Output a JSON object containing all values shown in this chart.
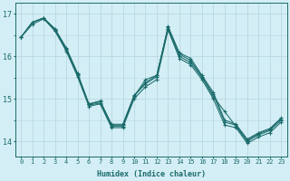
{
  "xlabel": "Humidex (Indice chaleur)",
  "bg_color": "#d4eef5",
  "grid_color": "#b8d8e0",
  "line_color": "#1a6b6b",
  "xlim": [
    -0.5,
    23.5
  ],
  "ylim": [
    13.65,
    17.25
  ],
  "yticks": [
    14,
    15,
    16,
    17
  ],
  "xticks": [
    0,
    1,
    2,
    3,
    4,
    5,
    6,
    7,
    8,
    9,
    10,
    11,
    12,
    13,
    14,
    15,
    16,
    17,
    18,
    19,
    20,
    21,
    22,
    23
  ],
  "lines": [
    {
      "x": [
        0,
        1,
        2,
        3,
        4,
        5,
        6,
        7,
        8,
        9,
        10,
        11,
        12,
        13,
        14,
        15,
        16,
        17,
        18,
        19,
        20,
        21,
        22,
        23
      ],
      "y": [
        16.45,
        16.8,
        16.9,
        16.6,
        16.15,
        15.55,
        14.85,
        14.9,
        14.35,
        14.35,
        15.05,
        15.45,
        15.55,
        16.65,
        16.0,
        15.85,
        15.5,
        15.05,
        14.7,
        14.35,
        14.0,
        14.15,
        14.25,
        14.5
      ]
    },
    {
      "x": [
        0,
        1,
        2,
        3,
        4,
        5,
        6,
        7,
        8,
        9,
        10,
        11,
        12,
        13,
        14,
        15,
        16,
        17,
        18,
        19,
        20,
        21,
        22,
        23
      ],
      "y": [
        16.45,
        16.8,
        16.9,
        16.62,
        16.18,
        15.58,
        14.87,
        14.93,
        14.38,
        14.38,
        15.07,
        15.35,
        15.52,
        16.68,
        16.05,
        15.9,
        15.52,
        15.1,
        14.45,
        14.38,
        14.02,
        14.18,
        14.28,
        14.52
      ]
    },
    {
      "x": [
        0,
        1,
        2,
        3,
        4,
        5,
        6,
        7,
        8,
        9,
        10,
        11,
        12,
        13,
        14,
        15,
        16,
        17,
        18,
        19,
        20,
        21,
        22,
        23
      ],
      "y": [
        16.45,
        16.8,
        16.9,
        16.65,
        16.2,
        15.6,
        14.88,
        14.95,
        14.4,
        14.4,
        15.08,
        15.38,
        15.55,
        16.7,
        16.08,
        15.95,
        15.55,
        15.15,
        14.5,
        14.4,
        14.05,
        14.2,
        14.3,
        14.55
      ]
    },
    {
      "x": [
        0,
        1,
        2,
        3,
        4,
        5,
        6,
        7,
        8,
        9,
        10,
        11,
        12,
        13,
        14,
        15,
        16,
        17,
        18,
        19,
        20,
        21,
        22,
        23
      ],
      "y": [
        16.45,
        16.75,
        16.88,
        16.6,
        16.12,
        15.52,
        14.82,
        14.88,
        14.32,
        14.32,
        15.0,
        15.28,
        15.45,
        16.62,
        15.95,
        15.8,
        15.45,
        15.0,
        14.38,
        14.32,
        13.95,
        14.1,
        14.2,
        14.45
      ]
    }
  ]
}
